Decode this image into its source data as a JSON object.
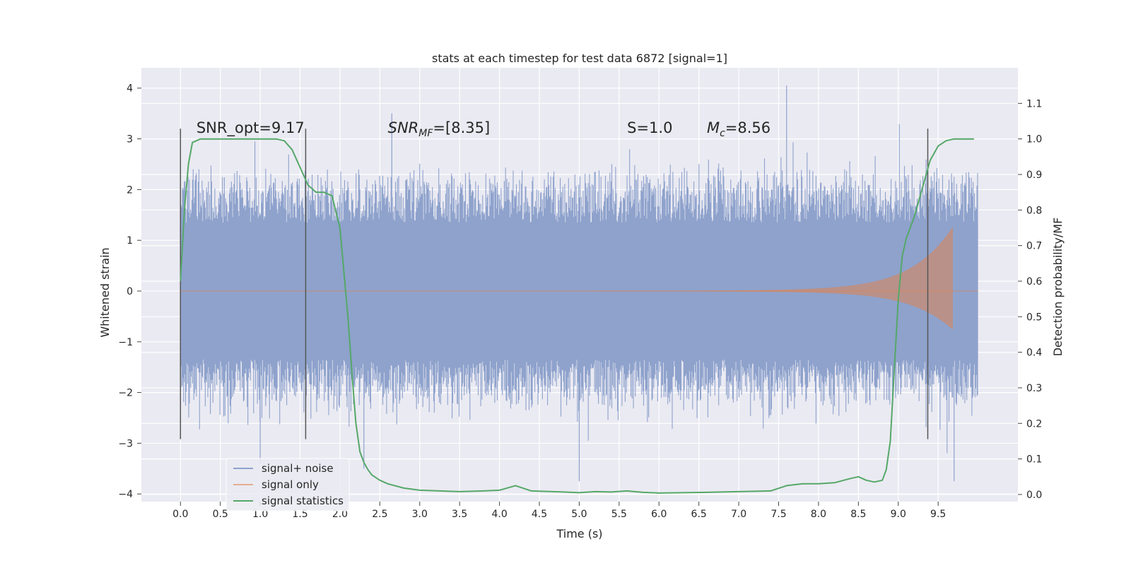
{
  "chart_data": {
    "type": "line",
    "title": "stats at each timestep for test data 6872 [signal=1]",
    "xlabel": "Time (s)",
    "ylabel": "Whitened strain",
    "y2label": "Detection probability/MF",
    "xlim": [
      -0.49,
      10.5
    ],
    "ylim": [
      -4.15,
      4.4
    ],
    "y2lim": [
      -0.02,
      1.2
    ],
    "x_ticks": [
      "0.0",
      "0.5",
      "1.0",
      "1.5",
      "2.0",
      "2.5",
      "3.0",
      "3.5",
      "4.0",
      "4.5",
      "5.0",
      "5.5",
      "6.0",
      "6.5",
      "7.0",
      "7.5",
      "8.0",
      "8.5",
      "9.0",
      "9.5"
    ],
    "y_ticks": [
      "4",
      "3",
      "2",
      "1",
      "0",
      "−1",
      "−2",
      "−3",
      "−4"
    ],
    "y2_ticks": [
      "1.1",
      "1.0",
      "0.9",
      "0.8",
      "0.7",
      "0.6",
      "0.5",
      "0.4",
      "0.3",
      "0.2",
      "0.1",
      "0.0"
    ],
    "grid": true,
    "legend_position": "lower-left",
    "annotations": [
      {
        "text": "SNR_opt=9.17",
        "x": 0.2,
        "y": 3.2
      },
      {
        "text": "SNR",
        "sub": "MF",
        "suffix": "=[8.35]",
        "x": 2.6,
        "y": 3.2
      },
      {
        "text": "S",
        "suffix": "=1.0",
        "x": 5.6,
        "y": 3.2
      },
      {
        "text": "M",
        "sub": "c",
        "suffix": "=8.56",
        "x": 6.6,
        "y": 3.2
      }
    ],
    "markers_x": [
      0.0,
      1.57,
      9.37
    ],
    "marker_range": [
      -2.92,
      3.2
    ],
    "series": [
      {
        "name": "signal+ noise",
        "color": "#8ea2cc",
        "axis": "left",
        "envelope": {
          "x_start": 0.0,
          "x_end": 10.0,
          "band": 1.35,
          "typical_peak": 2.3,
          "extreme_max": 4.05,
          "extreme_min": -3.75
        }
      },
      {
        "name": "signal only",
        "color": "#dd8452",
        "axis": "left",
        "chirp": {
          "x_start": 5.2,
          "x_end": 9.68,
          "peak_amplitude": 1.25,
          "tail_x": 10.0
        }
      },
      {
        "name": "signal statistics",
        "color": "#55a868",
        "axis": "right",
        "x": [
          0.0,
          0.05,
          0.1,
          0.15,
          0.25,
          0.5,
          0.8,
          1.0,
          1.2,
          1.3,
          1.4,
          1.5,
          1.6,
          1.7,
          1.8,
          1.9,
          2.0,
          2.1,
          2.15,
          2.2,
          2.25,
          2.3,
          2.35,
          2.4,
          2.5,
          2.6,
          2.8,
          3.0,
          3.5,
          3.8,
          4.0,
          4.2,
          4.4,
          4.8,
          5.0,
          5.2,
          5.4,
          5.6,
          5.8,
          6.0,
          6.3,
          6.6,
          7.0,
          7.4,
          7.6,
          7.8,
          8.0,
          8.2,
          8.4,
          8.5,
          8.6,
          8.7,
          8.8,
          8.85,
          8.9,
          8.95,
          9.0,
          9.05,
          9.1,
          9.2,
          9.3,
          9.4,
          9.5,
          9.6,
          9.7,
          9.8,
          9.95
        ],
        "values": [
          0.6,
          0.8,
          0.93,
          0.99,
          1.0,
          1.0,
          1.0,
          1.0,
          1.0,
          0.995,
          0.97,
          0.92,
          0.87,
          0.85,
          0.85,
          0.84,
          0.75,
          0.5,
          0.34,
          0.2,
          0.12,
          0.09,
          0.07,
          0.055,
          0.04,
          0.03,
          0.018,
          0.012,
          0.008,
          0.01,
          0.012,
          0.025,
          0.01,
          0.007,
          0.005,
          0.008,
          0.007,
          0.01,
          0.006,
          0.004,
          0.005,
          0.006,
          0.008,
          0.01,
          0.025,
          0.03,
          0.03,
          0.033,
          0.045,
          0.05,
          0.04,
          0.035,
          0.04,
          0.07,
          0.15,
          0.35,
          0.55,
          0.67,
          0.72,
          0.78,
          0.86,
          0.94,
          0.98,
          0.995,
          1.0,
          1.0,
          1.0
        ]
      }
    ]
  }
}
